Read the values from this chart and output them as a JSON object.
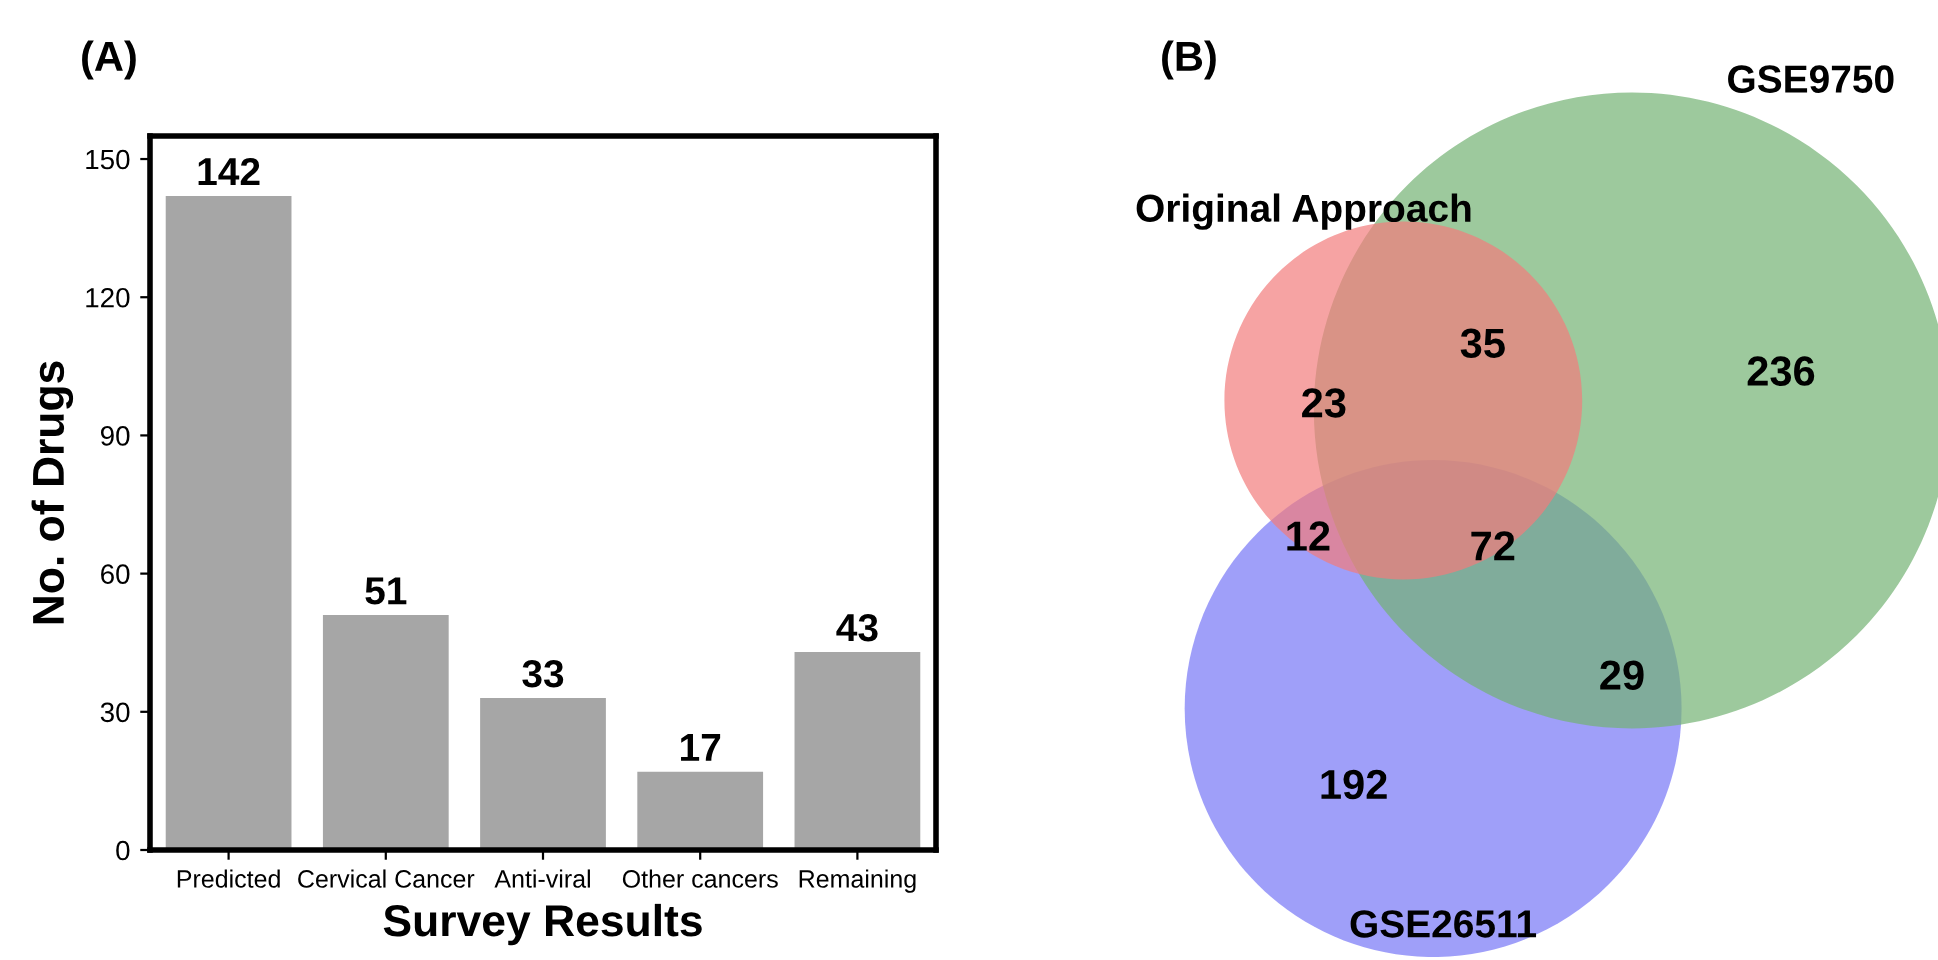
{
  "chart_data": [
    {
      "type": "bar",
      "title": "(A)",
      "xlabel": "Survey Results",
      "ylabel": "No. of Drugs",
      "categories": [
        "Predicted",
        "Cervical Cancer",
        "Anti-viral",
        "Other cancers",
        "Remaining"
      ],
      "values": [
        142,
        51,
        33,
        17,
        43
      ],
      "color": "#a6a6a6",
      "ylim": [
        0,
        155
      ],
      "yticks": [
        0,
        30,
        60,
        90,
        120,
        150
      ],
      "grid": false,
      "data_labels": true
    },
    {
      "type": "other",
      "title": "(B)",
      "annotations": [
        "Original Approach",
        "GSE9750",
        "GSE26511",
        "23",
        "35",
        "236",
        "12",
        "72",
        "29",
        "192"
      ]
    }
  ]
}
